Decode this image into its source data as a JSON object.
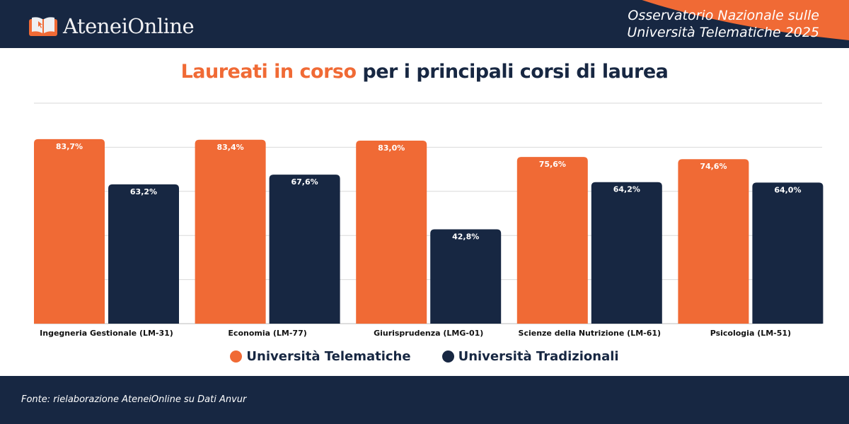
{
  "header": {
    "logo_text": "AteneiOnline",
    "observatory_line1": "Osservatorio Nazionale sulle",
    "observatory_line2": "Università Telematiche 2025"
  },
  "title": {
    "highlight": "Laureati in corso",
    "rest": " per i principali corsi di laurea"
  },
  "colors": {
    "orange": "#f06a35",
    "navy": "#172742"
  },
  "chart_data": {
    "type": "bar",
    "title": "Laureati in corso per i principali corsi di laurea",
    "categories": [
      "Ingegneria Gestionale (LM-31)",
      "Economia (LM-77)",
      "Giurisprudenza (LMG-01)",
      "Scienze della Nutrizione (LM-61)",
      "Psicologia (LM-51)"
    ],
    "series": [
      {
        "name": "Università Telematiche",
        "color": "#f06a35",
        "values": [
          83.7,
          83.4,
          83.0,
          75.6,
          74.6
        ],
        "labels": [
          "83,7%",
          "83,4%",
          "83,0%",
          "75,6%",
          "74,6%"
        ]
      },
      {
        "name": "Università Tradizionali",
        "color": "#172742",
        "values": [
          63.2,
          67.6,
          42.8,
          64.2,
          64.0
        ],
        "labels": [
          "63,2%",
          "67,6%",
          "42,8%",
          "64,2%",
          "64,0%"
        ]
      }
    ],
    "ylim": [
      0,
      100
    ],
    "grid": true,
    "legend": "bottom-center",
    "xlabel": "",
    "ylabel": ""
  },
  "footer": {
    "source": "Fonte: rielaborazione AteneiOnline su Dati Anvur"
  }
}
